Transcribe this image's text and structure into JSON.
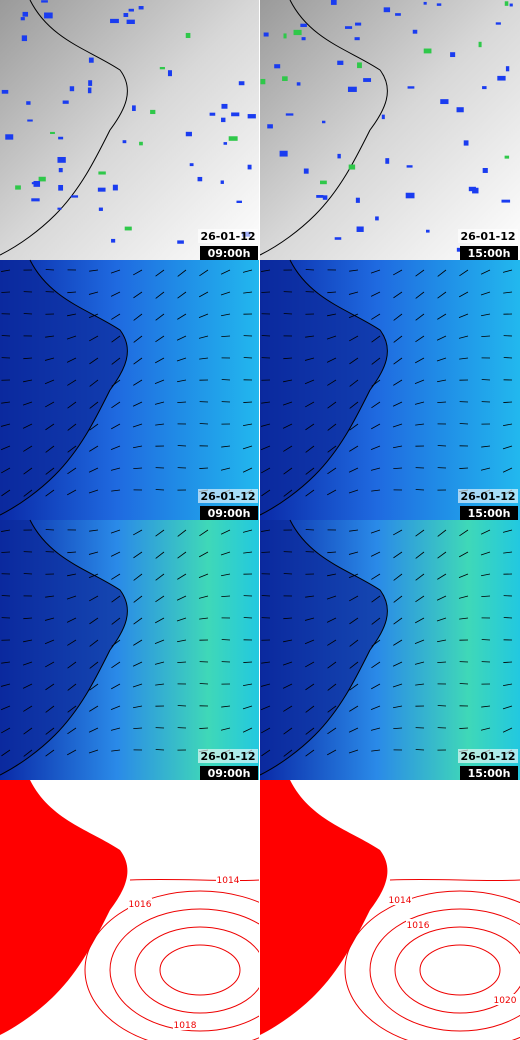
{
  "panels": [
    {
      "date": "26-01-12",
      "time": "09:00h"
    },
    {
      "date": "26-01-12",
      "time": "15:00h"
    },
    {
      "date": "26-01-12",
      "time": "09:00h"
    },
    {
      "date": "26-01-12",
      "time": "15:00h"
    },
    {
      "date": "26-01-12",
      "time": "09:00h"
    },
    {
      "date": "26-01-12",
      "time": "15:00h"
    }
  ],
  "pressure_panels": [
    {
      "labels": [
        "1014",
        "1016",
        "1018"
      ]
    },
    {
      "labels": [
        "1014",
        "1016",
        "1020"
      ]
    }
  ]
}
